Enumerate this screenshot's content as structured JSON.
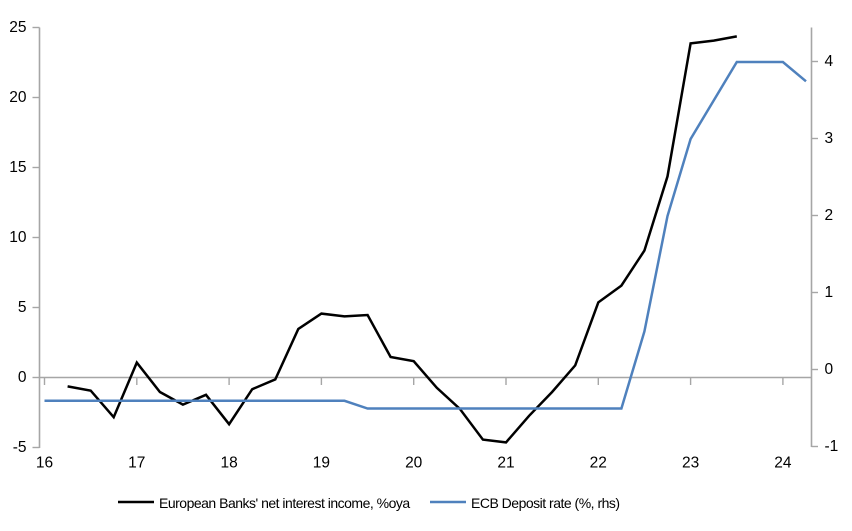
{
  "chart_data": {
    "type": "line",
    "title": "",
    "x_unit": "quarterly",
    "x_tick_labels": [
      "16",
      "17",
      "18",
      "19",
      "20",
      "21",
      "22",
      "23",
      "24"
    ],
    "x_tick_years": [
      16,
      17,
      18,
      19,
      20,
      21,
      22,
      23,
      24
    ],
    "left_axis": {
      "range": [
        -5,
        25
      ],
      "ticks": [
        {
          "v": 25,
          "label": "25"
        },
        {
          "v": 20,
          "label": "20"
        },
        {
          "v": 15,
          "label": "15"
        },
        {
          "v": 10,
          "label": "10"
        },
        {
          "v": 5,
          "label": "5"
        },
        {
          "v": 0,
          "label": "0"
        },
        {
          "v": -5,
          "label": "-5"
        }
      ]
    },
    "right_axis": {
      "range": [
        -1,
        4.45
      ],
      "ticks": [
        {
          "v": 4,
          "label": "4"
        },
        {
          "v": 3,
          "label": "3"
        },
        {
          "v": 2,
          "label": "2"
        },
        {
          "v": 1,
          "label": "1"
        },
        {
          "v": 0,
          "label": "0"
        },
        {
          "v": -1,
          "label": "-1"
        }
      ]
    },
    "grid": {
      "zero_line_only": true
    },
    "colors": {
      "axis": "#a6a6a6",
      "nii_line": "#000000",
      "ecb_line": "#4f81bd"
    },
    "series": [
      {
        "name": "European Banks' net interest income, %oya",
        "axis": "left",
        "color": "#000000",
        "start": "2016Q2",
        "start_index": 1,
        "values": [
          -0.6,
          -0.9,
          -2.8,
          1.1,
          -1.0,
          -1.9,
          -1.2,
          -3.3,
          -0.8,
          -0.1,
          3.5,
          4.6,
          4.4,
          4.5,
          1.5,
          1.2,
          -0.7,
          -2.2,
          -4.4,
          -4.6,
          -2.7,
          -1.0,
          0.9,
          5.4,
          6.6,
          9.1,
          14.4,
          23.9,
          24.1,
          24.4
        ]
      },
      {
        "name": "ECB Deposit rate (%, rhs)",
        "axis": "right",
        "color": "#4f81bd",
        "start": "2016Q1",
        "start_index": 0,
        "values": [
          -0.4,
          -0.4,
          -0.4,
          -0.4,
          -0.4,
          -0.4,
          -0.4,
          -0.4,
          -0.4,
          -0.4,
          -0.4,
          -0.4,
          -0.4,
          -0.4,
          -0.5,
          -0.5,
          -0.5,
          -0.5,
          -0.5,
          -0.5,
          -0.5,
          -0.5,
          -0.5,
          -0.5,
          -0.5,
          -0.5,
          0.5,
          2.0,
          3.0,
          3.5,
          4.0,
          4.0,
          4.0,
          3.75
        ]
      }
    ],
    "legend": [
      {
        "label": "European Banks' net interest income, %oya",
        "color": "#000000"
      },
      {
        "label": "ECB Deposit rate (%, rhs)",
        "color": "#4f81bd"
      }
    ],
    "legend_position": "bottom"
  }
}
